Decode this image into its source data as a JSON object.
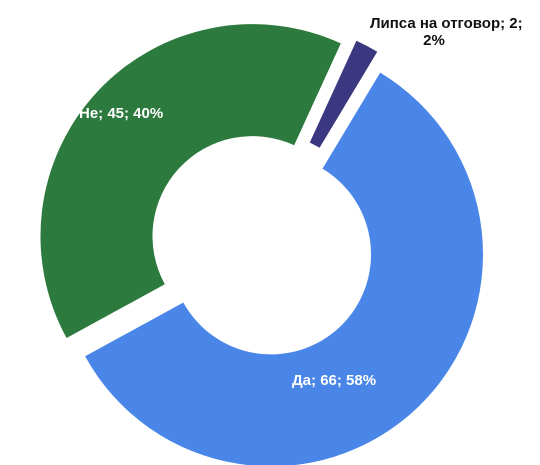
{
  "chart_data": {
    "type": "pie",
    "style": "doughnut-exploded",
    "categories": [
      "Да",
      "Не",
      "Липса на отговор"
    ],
    "values": [
      66,
      45,
      2
    ],
    "percents": [
      58,
      40,
      2
    ],
    "colors": [
      "#4a86e8",
      "#2d7a3e",
      "#3b3780"
    ],
    "labels": [
      "Да; 66; 58%",
      "Не; 45; 40%",
      "Липса на отговор; 2;",
      "2%"
    ],
    "label_colors": [
      "#ffffff",
      "#ffffff",
      "#111111",
      "#111111"
    ],
    "legend": "none"
  }
}
